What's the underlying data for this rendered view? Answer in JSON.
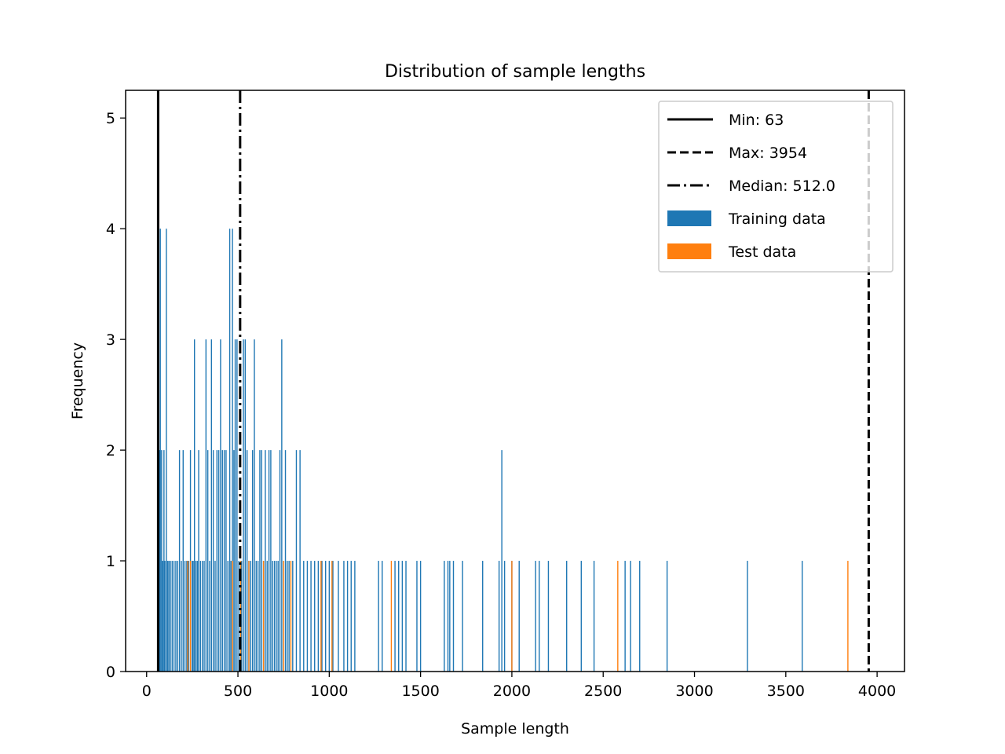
{
  "chart_data": {
    "type": "bar",
    "title": "Distribution of sample lengths",
    "xlabel": "Sample length",
    "ylabel": "Frequency",
    "xlim": [
      -115,
      4150
    ],
    "ylim": [
      0,
      5.25
    ],
    "xticks": [
      0,
      500,
      1000,
      1500,
      2000,
      2500,
      3000,
      3500,
      4000
    ],
    "yticks": [
      0,
      1,
      2,
      3,
      4,
      5
    ],
    "grid": false,
    "legend_position": "upper right",
    "colors": {
      "training": "#1f77b4",
      "test": "#ff7f0e",
      "lines": "#000000"
    },
    "reference_lines": [
      {
        "name": "min",
        "label": "Min: 63",
        "value": 63,
        "style": "solid"
      },
      {
        "name": "max",
        "label": "Max: 3954",
        "value": 3954,
        "style": "dashed"
      },
      {
        "name": "median",
        "label": "Median: 512.0",
        "value": 512.0,
        "style": "dashdot"
      }
    ],
    "series": [
      {
        "name": "Training data",
        "color": "#1f77b4",
        "x": [
          70,
          75,
          82,
          88,
          95,
          100,
          108,
          115,
          122,
          130,
          140,
          150,
          160,
          170,
          180,
          190,
          200,
          210,
          220,
          230,
          240,
          250,
          255,
          262,
          270,
          278,
          285,
          295,
          305,
          315,
          325,
          335,
          345,
          355,
          365,
          375,
          385,
          395,
          405,
          415,
          425,
          435,
          445,
          455,
          462,
          470,
          478,
          485,
          495,
          505,
          520,
          530,
          540,
          550,
          560,
          570,
          580,
          590,
          600,
          610,
          620,
          630,
          640,
          650,
          660,
          670,
          680,
          690,
          700,
          710,
          720,
          730,
          740,
          750,
          760,
          770,
          780,
          800,
          820,
          840,
          860,
          880,
          900,
          920,
          940,
          960,
          980,
          1000,
          1020,
          1050,
          1080,
          1100,
          1120,
          1140,
          1270,
          1290,
          1360,
          1380,
          1400,
          1420,
          1480,
          1500,
          1630,
          1650,
          1660,
          1680,
          1730,
          1840,
          1930,
          1945,
          1960,
          2000,
          2040,
          2130,
          2150,
          2200,
          2300,
          2380,
          2450,
          2620,
          2650,
          2700,
          2850,
          3290,
          3590
        ],
        "values": [
          2,
          4,
          2,
          1,
          2,
          1,
          4,
          1,
          1,
          1,
          1,
          1,
          1,
          1,
          2,
          1,
          2,
          1,
          1,
          1,
          2,
          1,
          1,
          3,
          1,
          1,
          2,
          1,
          1,
          1,
          3,
          2,
          1,
          3,
          2,
          1,
          2,
          2,
          3,
          2,
          2,
          2,
          1,
          4,
          1,
          4,
          2,
          3,
          3,
          1,
          1,
          3,
          3,
          2,
          1,
          1,
          2,
          3,
          1,
          1,
          2,
          2,
          1,
          2,
          1,
          2,
          2,
          1,
          1,
          1,
          1,
          2,
          3,
          1,
          2,
          1,
          1,
          1,
          2,
          2,
          1,
          1,
          1,
          1,
          1,
          1,
          1,
          1,
          1,
          1,
          1,
          1,
          1,
          1,
          1,
          1,
          1,
          1,
          1,
          1,
          1,
          1,
          1,
          1,
          1,
          1,
          1,
          1,
          1,
          2,
          1,
          1,
          1,
          1,
          1,
          1,
          1,
          1,
          1,
          1,
          1,
          1,
          1,
          1,
          1
        ]
      },
      {
        "name": "Test data",
        "color": "#ff7f0e",
        "x": [
          225,
          240,
          470,
          515,
          560,
          640,
          750,
          790,
          955,
          1015,
          1340,
          2000,
          2580,
          3840
        ],
        "values": [
          1,
          1,
          1,
          1,
          1,
          1,
          1,
          1,
          1,
          1,
          1,
          1,
          1,
          1
        ]
      }
    ]
  }
}
